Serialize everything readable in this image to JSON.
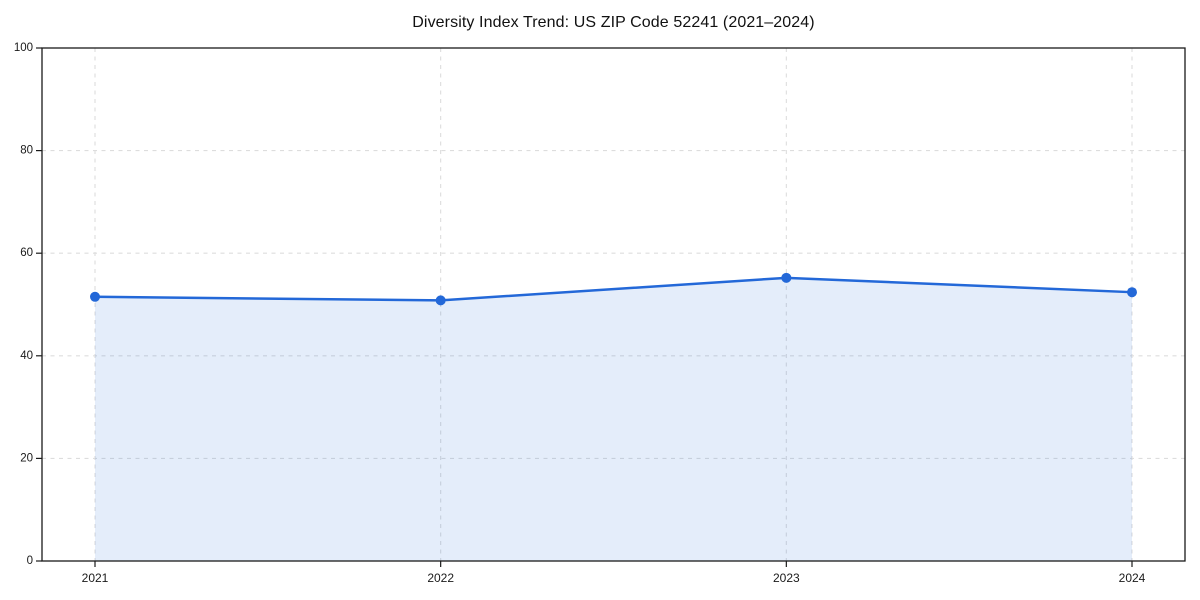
{
  "chart_data": {
    "type": "area",
    "title": "Diversity Index Trend: US ZIP Code 52241 (2021–2024)",
    "categories": [
      "2021",
      "2022",
      "2023",
      "2024"
    ],
    "series": [
      {
        "name": "Diversity Index",
        "values": [
          51.5,
          50.8,
          55.2,
          52.4
        ]
      }
    ],
    "xlabel": "",
    "ylabel": "",
    "ylim": [
      0,
      100
    ],
    "yticks": [
      0,
      20,
      40,
      60,
      80,
      100
    ],
    "grid": "dashed-both-axes",
    "legend_position": "none",
    "marker": "circle",
    "colors": {
      "line": "#2368d8",
      "marker": "#2368d8",
      "fill": "rgba(35, 104, 216, 0.12)",
      "grid": "#dddddd",
      "axis": "#1a1a1a",
      "background": "#ffffff"
    }
  }
}
